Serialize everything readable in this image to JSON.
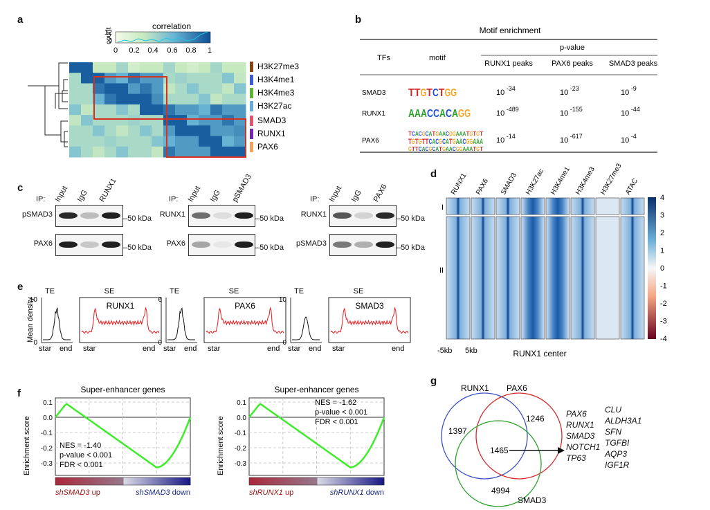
{
  "panels": {
    "a": "a",
    "b": "b",
    "c": "c",
    "d": "d",
    "e": "e",
    "f": "f",
    "g": "g"
  },
  "panel_a": {
    "colorbar_title": "correlation",
    "count_label": "count",
    "count_ticks": [
      "12",
      "0"
    ],
    "x_ticks": [
      "0",
      "0.2",
      "0.4",
      "0.6",
      "0.8",
      "1"
    ],
    "row_labels": [
      "H3K27me3",
      "H3K4me1",
      "H3K4me3",
      "H3K27ac",
      "SMAD3",
      "RUNX1",
      "PAX6"
    ],
    "row_colors": [
      "#8b4513",
      "#3b5bdb",
      "#5cb82e",
      "#66a9e8",
      "#e8526a",
      "#7a22b5",
      "#f4a35a"
    ]
  },
  "panel_b": {
    "title": "Motif enrichment",
    "pvalue_header": "p-value",
    "col_tfs": "TFs",
    "col_motif": "motif",
    "cols": [
      "RUNX1 peaks",
      "PAX6 peaks",
      "SMAD3 peaks"
    ],
    "rows": [
      {
        "tf": "SMAD3",
        "motif": "TTGTCTGG",
        "p": [
          "-34",
          "-23",
          "-9"
        ]
      },
      {
        "tf": "RUNX1",
        "motif": "AAACCACAGG",
        "p": [
          "-489",
          "-155",
          "-44"
        ]
      },
      {
        "tf": "PAX6",
        "motif": "TGTGTTCACGCATGAACGGAAA",
        "p": [
          "-14",
          "-617",
          "-4"
        ]
      }
    ],
    "base": "10"
  },
  "panel_c": {
    "ip_label": "IP:",
    "blots": [
      {
        "lanes": [
          "Input",
          "IgG",
          "RUNX1"
        ],
        "rows": [
          "pSMAD3",
          "PAX6"
        ]
      },
      {
        "lanes": [
          "Input",
          "IgG",
          "pSMAD3"
        ],
        "rows": [
          "RUNX1",
          "PAX6"
        ]
      },
      {
        "lanes": [
          "Input",
          "IgG",
          "PAX6"
        ],
        "rows": [
          "RUNX1",
          "pSMAD3"
        ]
      }
    ],
    "kda": "50 kDa"
  },
  "panel_d": {
    "columns": [
      "RUNX1",
      "PAX6",
      "SMAD3",
      "H3K27ac",
      "H3K4me1",
      "H3K4me3",
      "H3K27me3",
      "ATAC"
    ],
    "clusters": [
      "I",
      "II"
    ],
    "x_left": "-5kb",
    "x_right": "5kb",
    "xlabel": "RUNX1 center",
    "colorbar_ticks": [
      "4",
      "3",
      "2",
      "1",
      "0",
      "-1",
      "-2",
      "-3",
      "-4"
    ]
  },
  "panel_e": {
    "ylabel": "Mean density",
    "te": "TE",
    "se": "SE",
    "plots": [
      {
        "name": "RUNX1",
        "ymax": "10",
        "ymin": "0"
      },
      {
        "name": "PAX6",
        "ymax": "6",
        "ymin": "0"
      },
      {
        "name": "SMAD3",
        "ymax": "10",
        "ymin": "0"
      }
    ],
    "start": "star",
    "end": "end"
  },
  "panel_f": {
    "plots": [
      {
        "title": "Super-enhancer genes",
        "nes": "NES = -1.40",
        "pval": "p-value < 0.001",
        "fdr": "FDR < 0.001",
        "up": "shSMAD3",
        "down": "shSMAD3"
      },
      {
        "title": "Super-enhancer genes",
        "nes": "NES = -1.62",
        "pval": "p-value < 0.001",
        "fdr": "FDR < 0.001",
        "up": "shRUNX1",
        "down": "shRUNX1"
      }
    ],
    "ylabel": "Enrichment score",
    "yticks": [
      "0.1",
      "0.0",
      "-0.1",
      "-0.2",
      "-0.3"
    ],
    "up_suffix": " up",
    "down_suffix": " down"
  },
  "panel_g": {
    "sets": [
      "RUNX1",
      "PAX6",
      "SMAD3"
    ],
    "counts": [
      "1397",
      "1246",
      "1465",
      "4994"
    ],
    "genes_left": [
      "PAX6",
      "RUNX1",
      "SMAD3",
      "NOTCH1",
      "TP63"
    ],
    "genes_right": [
      "CLU",
      "ALDH3A1",
      "SFN",
      "TGFBI",
      "AQP3",
      "IGF1R"
    ]
  }
}
